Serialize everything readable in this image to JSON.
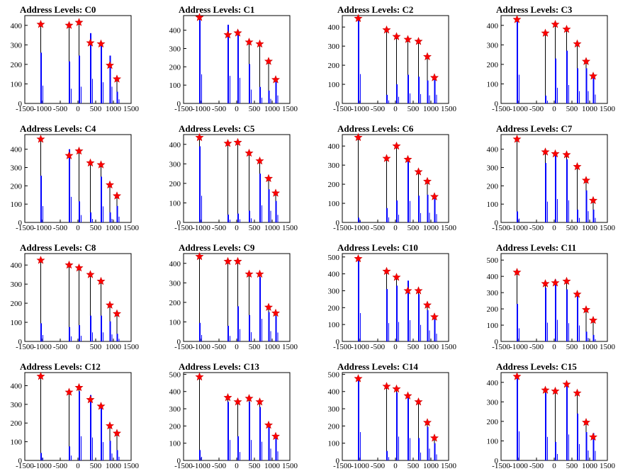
{
  "colors": {
    "histogram_outline": "#000000",
    "histogram_fill": "#0000ff",
    "marker_fill": "#ff0000",
    "axis": "#000000"
  },
  "marker": "red-star",
  "chart_data": [
    {
      "title": "Address Levels: C0",
      "type": "bar",
      "xlim": [
        -1500,
        1500
      ],
      "ylim": [
        0,
        450
      ],
      "x_ticks": [
        -1500,
        -1000,
        -500,
        0,
        500,
        1000,
        1500
      ],
      "y_ticks": [
        0,
        100,
        200,
        300,
        400
      ],
      "peaks": [
        {
          "x": -1050,
          "y": 405,
          "blue": 260
        },
        {
          "x": -250,
          "y": 400,
          "blue": 215
        },
        {
          "x": 30,
          "y": 415,
          "blue": 245
        },
        {
          "x": 350,
          "y": 310,
          "blue": 360
        },
        {
          "x": 650,
          "y": 305,
          "blue": 310
        },
        {
          "x": 900,
          "y": 195,
          "blue": 245
        },
        {
          "x": 1100,
          "y": 125,
          "blue": 60
        }
      ]
    },
    {
      "title": "Address Levels: C1",
      "type": "bar",
      "xlim": [
        -1500,
        1500
      ],
      "ylim": [
        0,
        480
      ],
      "x_ticks": [
        -1500,
        -1000,
        -500,
        0,
        500,
        1000,
        1500
      ],
      "y_ticks": [
        0,
        100,
        200,
        300,
        400
      ],
      "peaks": [
        {
          "x": -1050,
          "y": 470,
          "blue": 455
        },
        {
          "x": -250,
          "y": 375,
          "blue": 430
        },
        {
          "x": 30,
          "y": 385,
          "blue": 400
        },
        {
          "x": 350,
          "y": 335,
          "blue": 215
        },
        {
          "x": 650,
          "y": 325,
          "blue": 90
        },
        {
          "x": 900,
          "y": 230,
          "blue": 70
        },
        {
          "x": 1100,
          "y": 130,
          "blue": 125
        }
      ]
    },
    {
      "title": "Address Levels: C2",
      "type": "bar",
      "xlim": [
        -1500,
        1500
      ],
      "ylim": [
        0,
        460
      ],
      "x_ticks": [
        -1500,
        -1000,
        -500,
        0,
        500,
        1000,
        1500
      ],
      "y_ticks": [
        0,
        100,
        200,
        300,
        400
      ],
      "peaks": [
        {
          "x": -1050,
          "y": 445,
          "blue": 440
        },
        {
          "x": -250,
          "y": 385,
          "blue": 45
        },
        {
          "x": 30,
          "y": 350,
          "blue": 100
        },
        {
          "x": 350,
          "y": 335,
          "blue": 150
        },
        {
          "x": 650,
          "y": 325,
          "blue": 140
        },
        {
          "x": 900,
          "y": 245,
          "blue": 120
        },
        {
          "x": 1100,
          "y": 135,
          "blue": 130
        }
      ]
    },
    {
      "title": "Address Levels: C3",
      "type": "bar",
      "xlim": [
        -1500,
        1500
      ],
      "ylim": [
        0,
        450
      ],
      "x_ticks": [
        -1500,
        -1000,
        -500,
        0,
        500,
        1000,
        1500
      ],
      "y_ticks": [
        0,
        100,
        200,
        300,
        400
      ],
      "peaks": [
        {
          "x": -1050,
          "y": 430,
          "blue": 420
        },
        {
          "x": -250,
          "y": 360,
          "blue": 40
        },
        {
          "x": 30,
          "y": 405,
          "blue": 230
        },
        {
          "x": 350,
          "y": 380,
          "blue": 270
        },
        {
          "x": 650,
          "y": 305,
          "blue": 180
        },
        {
          "x": 900,
          "y": 215,
          "blue": 180
        },
        {
          "x": 1100,
          "y": 140,
          "blue": 130
        }
      ]
    },
    {
      "title": "Address Levels: C4",
      "type": "bar",
      "xlim": [
        -1500,
        1500
      ],
      "ylim": [
        0,
        480
      ],
      "x_ticks": [
        -1500,
        -1000,
        -500,
        0,
        500,
        1000,
        1500
      ],
      "y_ticks": [
        0,
        100,
        200,
        300,
        400
      ],
      "peaks": [
        {
          "x": -1050,
          "y": 455,
          "blue": 255
        },
        {
          "x": -250,
          "y": 365,
          "blue": 400
        },
        {
          "x": 30,
          "y": 390,
          "blue": 115
        },
        {
          "x": 350,
          "y": 325,
          "blue": 55
        },
        {
          "x": 650,
          "y": 315,
          "blue": 250
        },
        {
          "x": 900,
          "y": 205,
          "blue": 55
        },
        {
          "x": 1100,
          "y": 145,
          "blue": 90
        }
      ]
    },
    {
      "title": "Address Levels: C5",
      "type": "bar",
      "xlim": [
        -1500,
        1500
      ],
      "ylim": [
        0,
        450
      ],
      "x_ticks": [
        -1500,
        -1000,
        -500,
        0,
        500,
        1000,
        1500
      ],
      "y_ticks": [
        0,
        100,
        200,
        300,
        400
      ],
      "peaks": [
        {
          "x": -1050,
          "y": 435,
          "blue": 390
        },
        {
          "x": -250,
          "y": 405,
          "blue": 40
        },
        {
          "x": 30,
          "y": 410,
          "blue": 45
        },
        {
          "x": 350,
          "y": 355,
          "blue": 60
        },
        {
          "x": 650,
          "y": 315,
          "blue": 250
        },
        {
          "x": 900,
          "y": 225,
          "blue": 170
        },
        {
          "x": 1100,
          "y": 150,
          "blue": 110
        }
      ]
    },
    {
      "title": "Address Levels: C6",
      "type": "bar",
      "xlim": [
        -1500,
        1500
      ],
      "ylim": [
        0,
        460
      ],
      "x_ticks": [
        -1500,
        -1000,
        -500,
        0,
        500,
        1000,
        1500
      ],
      "y_ticks": [
        0,
        100,
        200,
        300,
        400
      ],
      "peaks": [
        {
          "x": -1050,
          "y": 445,
          "blue": 25
        },
        {
          "x": -250,
          "y": 335,
          "blue": 75
        },
        {
          "x": 30,
          "y": 400,
          "blue": 115
        },
        {
          "x": 350,
          "y": 330,
          "blue": 320
        },
        {
          "x": 650,
          "y": 265,
          "blue": 140
        },
        {
          "x": 900,
          "y": 215,
          "blue": 145
        },
        {
          "x": 1100,
          "y": 135,
          "blue": 125
        }
      ]
    },
    {
      "title": "Address Levels: C7",
      "type": "bar",
      "xlim": [
        -1500,
        1500
      ],
      "ylim": [
        0,
        480
      ],
      "x_ticks": [
        -1500,
        -1000,
        -500,
        0,
        500,
        1000,
        1500
      ],
      "y_ticks": [
        0,
        100,
        200,
        300,
        400
      ],
      "peaks": [
        {
          "x": -1050,
          "y": 455,
          "blue": 60
        },
        {
          "x": -250,
          "y": 385,
          "blue": 325
        },
        {
          "x": 30,
          "y": 375,
          "blue": 365
        },
        {
          "x": 350,
          "y": 370,
          "blue": 345
        },
        {
          "x": 650,
          "y": 305,
          "blue": 70
        },
        {
          "x": 900,
          "y": 230,
          "blue": 175
        },
        {
          "x": 1100,
          "y": 120,
          "blue": 70
        }
      ]
    },
    {
      "title": "Address Levels: C8",
      "type": "bar",
      "xlim": [
        -1500,
        1500
      ],
      "ylim": [
        0,
        460
      ],
      "x_ticks": [
        -1500,
        -1000,
        -500,
        0,
        500,
        1000,
        1500
      ],
      "y_ticks": [
        0,
        100,
        200,
        300,
        400
      ],
      "peaks": [
        {
          "x": -1050,
          "y": 425,
          "blue": 95
        },
        {
          "x": -250,
          "y": 400,
          "blue": 75
        },
        {
          "x": 30,
          "y": 385,
          "blue": 85
        },
        {
          "x": 350,
          "y": 350,
          "blue": 135
        },
        {
          "x": 650,
          "y": 315,
          "blue": 135
        },
        {
          "x": 900,
          "y": 190,
          "blue": 105
        },
        {
          "x": 1100,
          "y": 145,
          "blue": 40
        }
      ]
    },
    {
      "title": "Address Levels: C9",
      "type": "bar",
      "xlim": [
        -1500,
        1500
      ],
      "ylim": [
        0,
        450
      ],
      "x_ticks": [
        -1500,
        -1000,
        -500,
        0,
        500,
        1000,
        1500
      ],
      "y_ticks": [
        0,
        100,
        200,
        300,
        400
      ],
      "peaks": [
        {
          "x": -1050,
          "y": 435,
          "blue": 95
        },
        {
          "x": -250,
          "y": 410,
          "blue": 80
        },
        {
          "x": 30,
          "y": 410,
          "blue": 180
        },
        {
          "x": 350,
          "y": 345,
          "blue": 135
        },
        {
          "x": 650,
          "y": 345,
          "blue": 330
        },
        {
          "x": 900,
          "y": 175,
          "blue": 150
        },
        {
          "x": 1100,
          "y": 145,
          "blue": 130
        }
      ]
    },
    {
      "title": "Address Levels: C10",
      "type": "bar",
      "xlim": [
        -1500,
        1500
      ],
      "ylim": [
        0,
        520
      ],
      "x_ticks": [
        -1500,
        -1000,
        -500,
        0,
        500,
        1000,
        1500
      ],
      "y_ticks": [
        0,
        100,
        200,
        300,
        400,
        500
      ],
      "peaks": [
        {
          "x": -1050,
          "y": 490,
          "blue": 480
        },
        {
          "x": -250,
          "y": 415,
          "blue": 310
        },
        {
          "x": 30,
          "y": 380,
          "blue": 330
        },
        {
          "x": 350,
          "y": 300,
          "blue": 360
        },
        {
          "x": 650,
          "y": 300,
          "blue": 280
        },
        {
          "x": 900,
          "y": 215,
          "blue": 185
        },
        {
          "x": 1100,
          "y": 145,
          "blue": 130
        }
      ]
    },
    {
      "title": "Address Levels: C11",
      "type": "bar",
      "xlim": [
        -1500,
        1500
      ],
      "ylim": [
        0,
        540
      ],
      "x_ticks": [
        -1500,
        -1000,
        -500,
        0,
        500,
        1000,
        1500
      ],
      "y_ticks": [
        0,
        100,
        200,
        300,
        400,
        500
      ],
      "peaks": [
        {
          "x": -1050,
          "y": 425,
          "blue": 230
        },
        {
          "x": -250,
          "y": 355,
          "blue": 330
        },
        {
          "x": 30,
          "y": 360,
          "blue": 380
        },
        {
          "x": 350,
          "y": 370,
          "blue": 320
        },
        {
          "x": 650,
          "y": 290,
          "blue": 280
        },
        {
          "x": 900,
          "y": 195,
          "blue": 60
        },
        {
          "x": 1100,
          "y": 130,
          "blue": 40
        }
      ]
    },
    {
      "title": "Address Levels: C12",
      "type": "bar",
      "xlim": [
        -1500,
        1500
      ],
      "ylim": [
        0,
        470
      ],
      "x_ticks": [
        -1500,
        -1000,
        -500,
        0,
        500,
        1000,
        1500
      ],
      "y_ticks": [
        0,
        100,
        200,
        300,
        400
      ],
      "peaks": [
        {
          "x": -1050,
          "y": 450,
          "blue": 40
        },
        {
          "x": -250,
          "y": 365,
          "blue": 75
        },
        {
          "x": 30,
          "y": 390,
          "blue": 370
        },
        {
          "x": 350,
          "y": 325,
          "blue": 350
        },
        {
          "x": 650,
          "y": 290,
          "blue": 280
        },
        {
          "x": 900,
          "y": 185,
          "blue": 105
        },
        {
          "x": 1100,
          "y": 145,
          "blue": 55
        }
      ]
    },
    {
      "title": "Address Levels: C13",
      "type": "bar",
      "xlim": [
        -1500,
        1500
      ],
      "ylim": [
        0,
        510
      ],
      "x_ticks": [
        -1500,
        -1000,
        -500,
        0,
        500,
        1000,
        1500
      ],
      "y_ticks": [
        0,
        100,
        200,
        300,
        400,
        500
      ],
      "peaks": [
        {
          "x": -1050,
          "y": 485,
          "blue": 60
        },
        {
          "x": -250,
          "y": 365,
          "blue": 340
        },
        {
          "x": 30,
          "y": 340,
          "blue": 140
        },
        {
          "x": 350,
          "y": 360,
          "blue": 340
        },
        {
          "x": 650,
          "y": 340,
          "blue": 310
        },
        {
          "x": 900,
          "y": 205,
          "blue": 195
        },
        {
          "x": 1100,
          "y": 140,
          "blue": 150
        }
      ]
    },
    {
      "title": "Address Levels: C14",
      "type": "bar",
      "xlim": [
        -1500,
        1500
      ],
      "ylim": [
        0,
        510
      ],
      "x_ticks": [
        -1500,
        -1000,
        -500,
        0,
        500,
        1000,
        1500
      ],
      "y_ticks": [
        0,
        100,
        200,
        300,
        400,
        500
      ],
      "peaks": [
        {
          "x": -1050,
          "y": 475,
          "blue": 470
        },
        {
          "x": -250,
          "y": 430,
          "blue": 55
        },
        {
          "x": 30,
          "y": 415,
          "blue": 395
        },
        {
          "x": 350,
          "y": 375,
          "blue": 370
        },
        {
          "x": 650,
          "y": 340,
          "blue": 130
        },
        {
          "x": 900,
          "y": 220,
          "blue": 195
        },
        {
          "x": 1100,
          "y": 130,
          "blue": 100
        }
      ]
    },
    {
      "title": "Address Levels: C15",
      "type": "bar",
      "xlim": [
        -1500,
        1500
      ],
      "ylim": [
        0,
        450
      ],
      "x_ticks": [
        -1500,
        -1000,
        -500,
        0,
        500,
        1000,
        1500
      ],
      "y_ticks": [
        0,
        100,
        200,
        300,
        400
      ],
      "peaks": [
        {
          "x": -1050,
          "y": 430,
          "blue": 425
        },
        {
          "x": -250,
          "y": 360,
          "blue": 345
        },
        {
          "x": 30,
          "y": 355,
          "blue": 95
        },
        {
          "x": 350,
          "y": 390,
          "blue": 380
        },
        {
          "x": 650,
          "y": 345,
          "blue": 240
        },
        {
          "x": 900,
          "y": 195,
          "blue": 145
        },
        {
          "x": 1100,
          "y": 120,
          "blue": 140
        }
      ]
    }
  ]
}
